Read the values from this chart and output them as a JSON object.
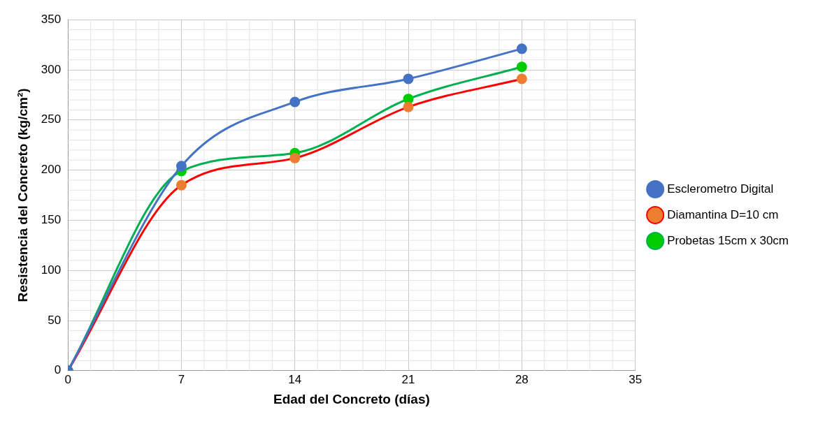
{
  "chart_data": {
    "type": "line",
    "xlabel": "Edad del Concreto (días)",
    "ylabel": "Resistencia del Concreto (kg/cm²)",
    "x": [
      0,
      7,
      14,
      21,
      28
    ],
    "series": [
      {
        "name": "Esclerometro Digital",
        "color": "#4472c4",
        "values": [
          0,
          204,
          268,
          291,
          321
        ]
      },
      {
        "name": "Diamantina D=10 cm",
        "color": "#ff0000",
        "colors": [
          "#ed7d31",
          "#ed7d31",
          "#ed7d31",
          "#ed7d31",
          "#ed7d31"
        ],
        "values": [
          0,
          185,
          212,
          263,
          291
        ]
      },
      {
        "name": "Probetas 15cm x 30cm",
        "color": "#00b050",
        "colors": [
          "#00cc00",
          "#00cc00",
          "#00cc00",
          "#00cc00",
          "#00cc00"
        ],
        "values": [
          0,
          199,
          217,
          271,
          303
        ]
      }
    ],
    "xlim": [
      0,
      35
    ],
    "xticks": [
      0,
      7,
      14,
      21,
      28,
      35
    ],
    "ylim": [
      0,
      350
    ],
    "yticks": [
      0,
      50,
      100,
      150,
      200,
      250,
      300,
      350
    ],
    "grid": true,
    "legend": "right",
    "marker": "circle",
    "line_style": "solid"
  }
}
